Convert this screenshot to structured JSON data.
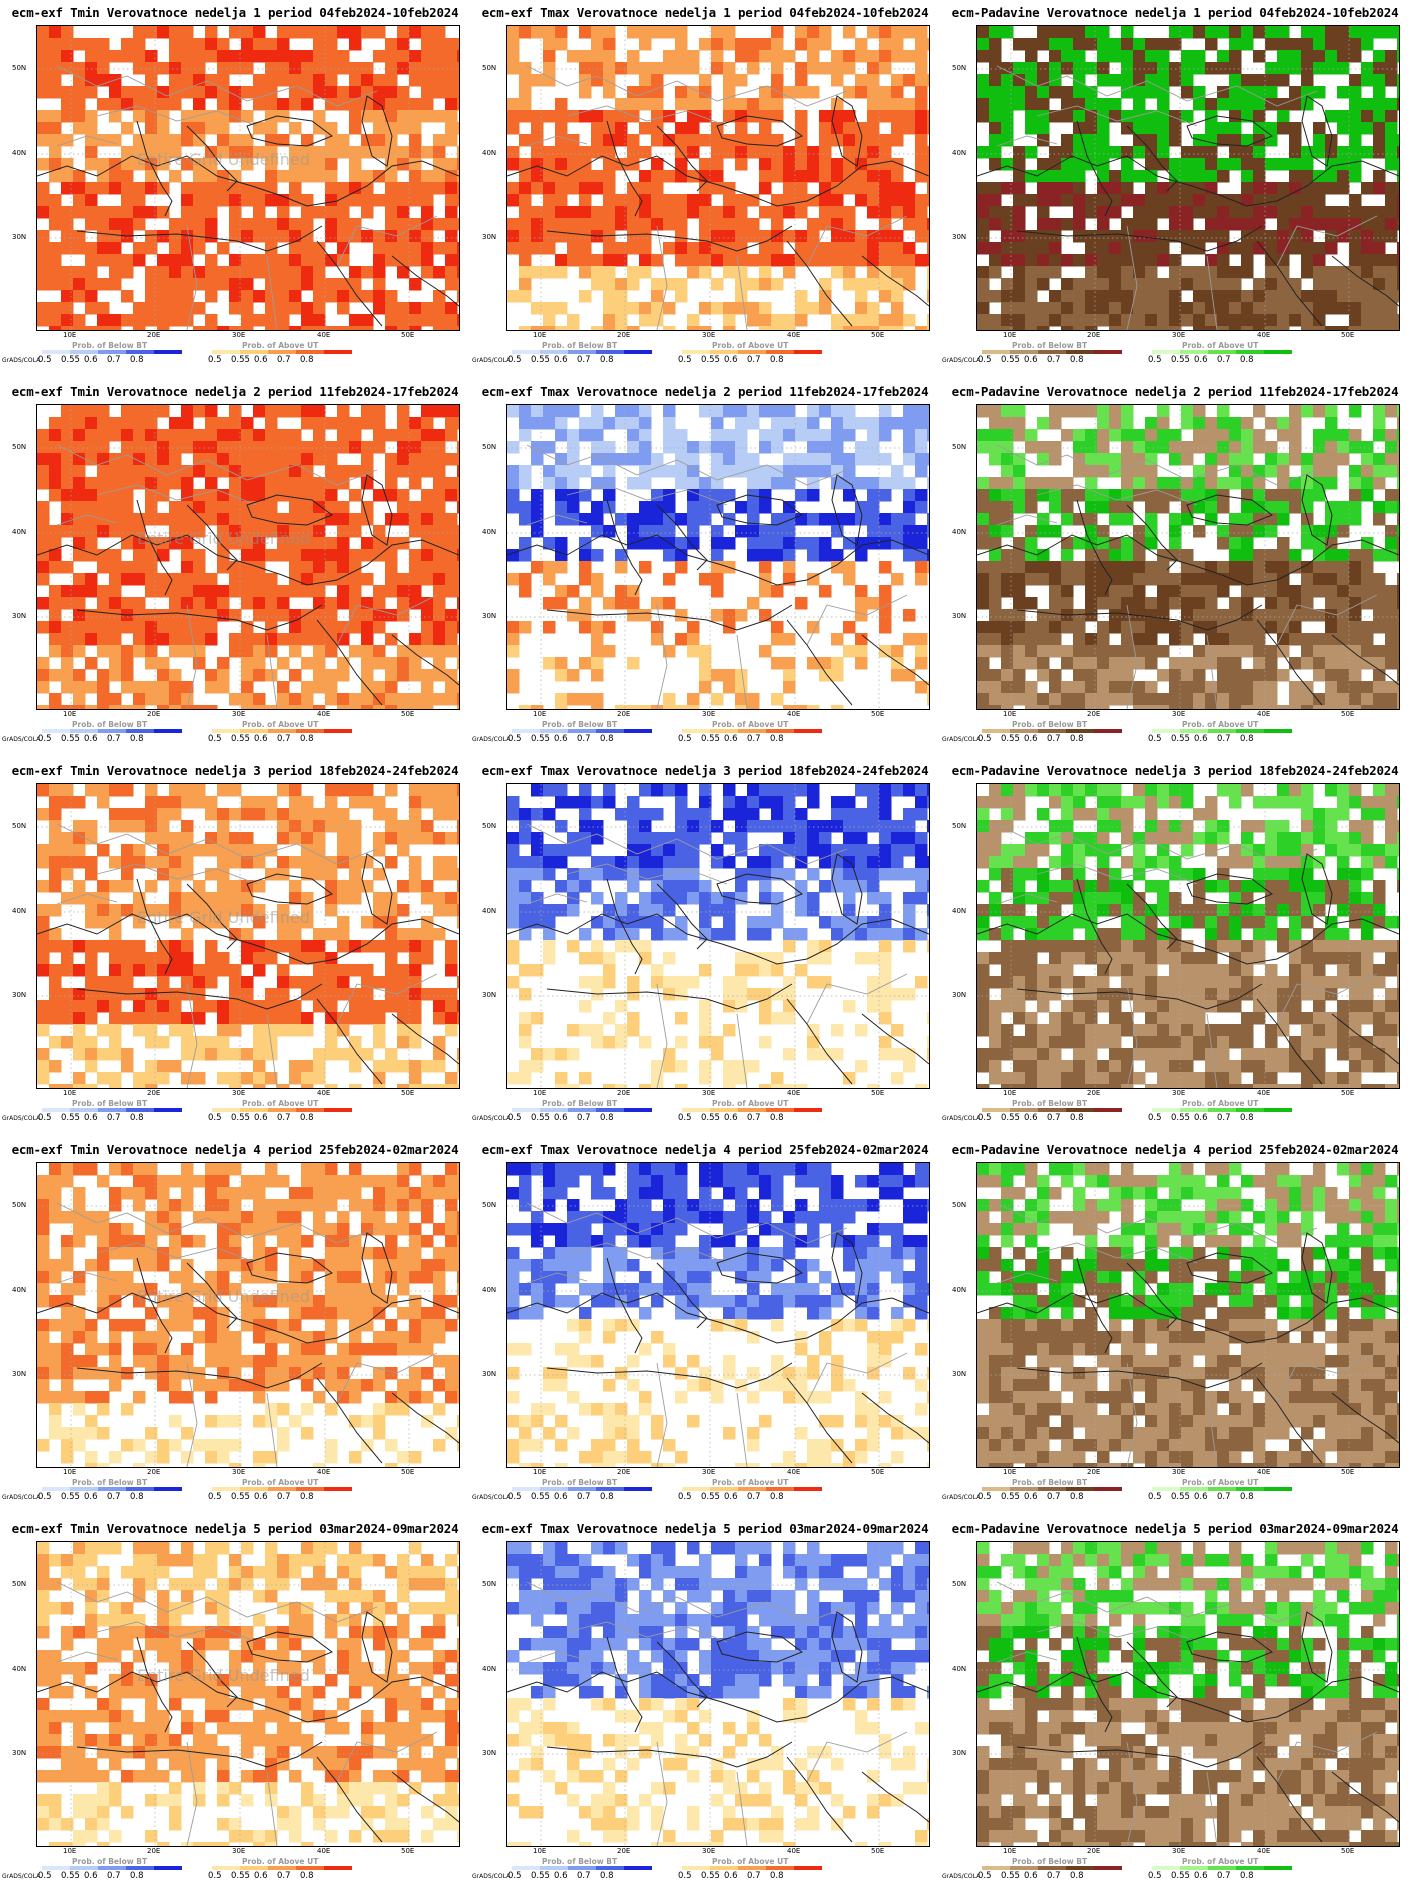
{
  "map_common": {
    "lat_labels": [
      "50N",
      "40N",
      "30N"
    ],
    "lon_labels": [
      "10E",
      "20E",
      "30E",
      "40E",
      "50E"
    ],
    "grads_label": "GrADS/COLA",
    "below_title": "Prob. of Below BT",
    "above_title": "Prob. of Above UT",
    "legend_ticks": [
      "0.5",
      "0.55",
      "0.6",
      "0.7",
      "0.8"
    ],
    "undefined_text": "Entire Grid Undefined"
  },
  "palettes": {
    "temp_below": [
      "#dbe6fb",
      "#b8cdf6",
      "#7f9cf0",
      "#4a62e4",
      "#1a24d8"
    ],
    "temp_above": [
      "#fde7aa",
      "#fdcf7a",
      "#f9a050",
      "#f36a2a",
      "#ee2a10"
    ],
    "precip_below": [
      "#d9bb8a",
      "#b8926a",
      "#8c6440",
      "#6a4020",
      "#8a2424"
    ],
    "precip_above": [
      "#d8fbc8",
      "#a6f48e",
      "#66e24e",
      "#2cd026",
      "#0fbe0e"
    ]
  },
  "rows": [
    {
      "week": "1",
      "period": "04feb2024-10feb2024",
      "levels": {
        "tmin": [
          4,
          3,
          4,
          4
        ],
        "tmax": [
          3,
          4,
          4,
          2
        ],
        "padavine": [
          4,
          4,
          4,
          3
        ]
      }
    },
    {
      "week": "2",
      "period": "11feb2024-17feb2024",
      "levels": {
        "tmin": [
          4,
          4,
          4,
          3
        ],
        "tmax": [
          1,
          3,
          3,
          2
        ],
        "padavine": [
          2,
          3,
          3,
          2
        ]
      }
    },
    {
      "week": "3",
      "period": "18feb2024-24feb2024",
      "levels": {
        "tmin": [
          3,
          3,
          4,
          2
        ],
        "tmax": [
          3,
          2,
          1,
          1
        ],
        "padavine": [
          2,
          3,
          2,
          2
        ]
      }
    },
    {
      "week": "4",
      "period": "25feb2024-02mar2024",
      "levels": {
        "tmin": [
          3,
          3,
          3,
          1
        ],
        "tmax": [
          3,
          2,
          1,
          1
        ],
        "padavine": [
          2,
          3,
          2,
          2
        ]
      }
    },
    {
      "week": "5",
      "period": "03mar2024-09mar2024",
      "levels": {
        "tmin": [
          2,
          3,
          3,
          1
        ],
        "tmax": [
          2,
          2,
          1,
          1
        ],
        "padavine": [
          2,
          3,
          2,
          2
        ]
      }
    }
  ],
  "variables": [
    {
      "key": "tmin",
      "title_prefix": "ecm-exf Tmin Verovatnoce nedelja",
      "has_undef": true,
      "below": "temp_below",
      "above": "temp_above"
    },
    {
      "key": "tmax",
      "title_prefix": "ecm-exf Tmax Verovatnoce nedelja",
      "has_undef": false,
      "below": "temp_below",
      "above": "temp_above"
    },
    {
      "key": "padavine",
      "title_prefix": "ecm-Padavine Verovatnoce nedelja",
      "has_undef": false,
      "below": "precip_below",
      "above": "precip_above"
    }
  ]
}
